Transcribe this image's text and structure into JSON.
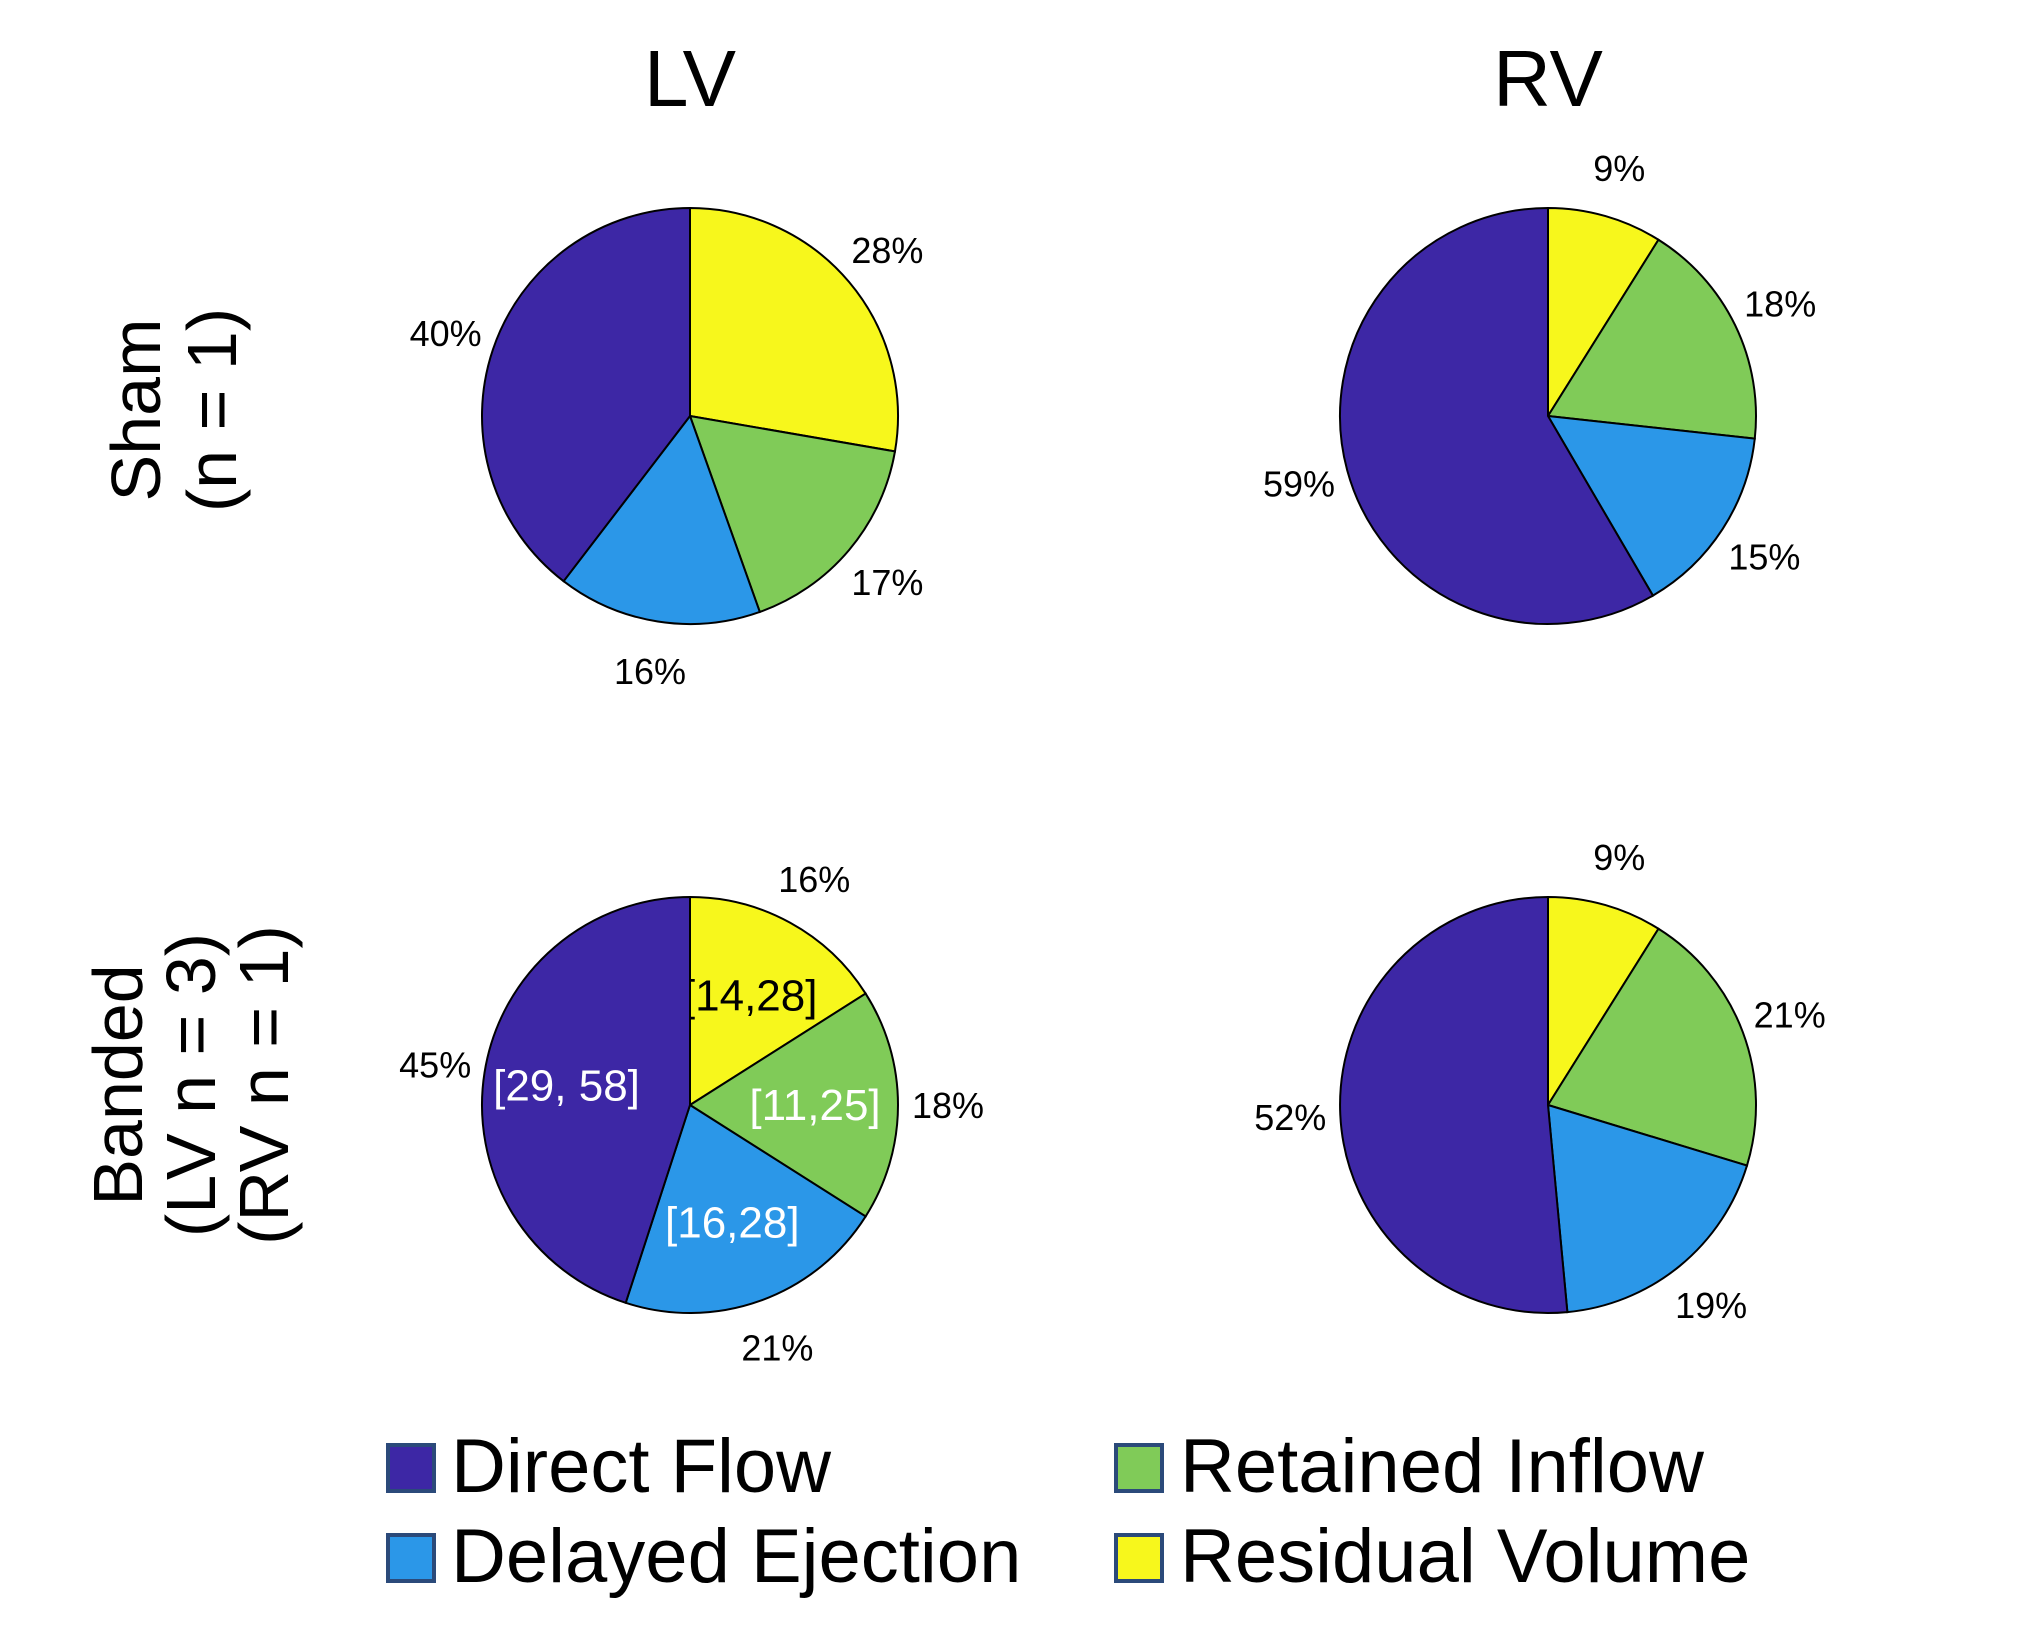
{
  "columns": [
    "LV",
    "RV"
  ],
  "rows": [
    {
      "lines": [
        "Sham",
        "(n = 1)"
      ]
    },
    {
      "lines": [
        "Banded",
        "(LV n = 3)",
        "(RV n = 1)"
      ]
    }
  ],
  "legend": {
    "items": [
      {
        "label": "Direct Flow",
        "color": "#3d27a5"
      },
      {
        "label": "Retained Inflow",
        "color": "#80cb58"
      },
      {
        "label": "Delayed Ejection",
        "color": "#2b97e8"
      },
      {
        "label": "Residual Volume",
        "color": "#f7f71c"
      }
    ]
  },
  "chart_data": [
    {
      "type": "pie",
      "row": "Sham (n = 1)",
      "column": "LV",
      "categories": [
        "Residual Volume",
        "Retained Inflow",
        "Delayed Ejection",
        "Direct Flow"
      ],
      "values": [
        28,
        17,
        16,
        40
      ],
      "labels": [
        "28%",
        "17%",
        "16%",
        "40%"
      ],
      "colors": [
        "#f7f71c",
        "#80cb58",
        "#2b97e8",
        "#3d27a5"
      ],
      "start": "12 o'clock, clockwise"
    },
    {
      "type": "pie",
      "row": "Sham (n = 1)",
      "column": "RV",
      "categories": [
        "Residual Volume",
        "Retained Inflow",
        "Delayed Ejection",
        "Direct Flow"
      ],
      "values": [
        9,
        18,
        15,
        59
      ],
      "labels": [
        "9%",
        "18%",
        "15%",
        "59%"
      ],
      "colors": [
        "#f7f71c",
        "#80cb58",
        "#2b97e8",
        "#3d27a5"
      ],
      "start": "12 o'clock, clockwise"
    },
    {
      "type": "pie",
      "row": "Banded (LV n = 3) (RV n = 1)",
      "column": "LV",
      "categories": [
        "Residual Volume",
        "Retained Inflow",
        "Delayed Ejection",
        "Direct Flow"
      ],
      "values": [
        16,
        18,
        21,
        45
      ],
      "labels": [
        "16%",
        "18%",
        "21%",
        "45%"
      ],
      "ranges": [
        "[14,28]",
        "[11,25]",
        "[16,28]",
        "[29, 58]"
      ],
      "range_colors": [
        "#000000",
        "#ffffff",
        "#ffffff",
        "#ffffff"
      ],
      "colors": [
        "#f7f71c",
        "#80cb58",
        "#2b97e8",
        "#3d27a5"
      ],
      "start": "12 o'clock, clockwise"
    },
    {
      "type": "pie",
      "row": "Banded (LV n = 3) (RV n = 1)",
      "column": "RV",
      "categories": [
        "Residual Volume",
        "Retained Inflow",
        "Delayed Ejection",
        "Direct Flow"
      ],
      "values": [
        9,
        21,
        19,
        52
      ],
      "labels": [
        "9%",
        "21%",
        "19%",
        "52%"
      ],
      "colors": [
        "#f7f71c",
        "#80cb58",
        "#2b97e8",
        "#3d27a5"
      ],
      "start": "12 o'clock, clockwise"
    }
  ]
}
